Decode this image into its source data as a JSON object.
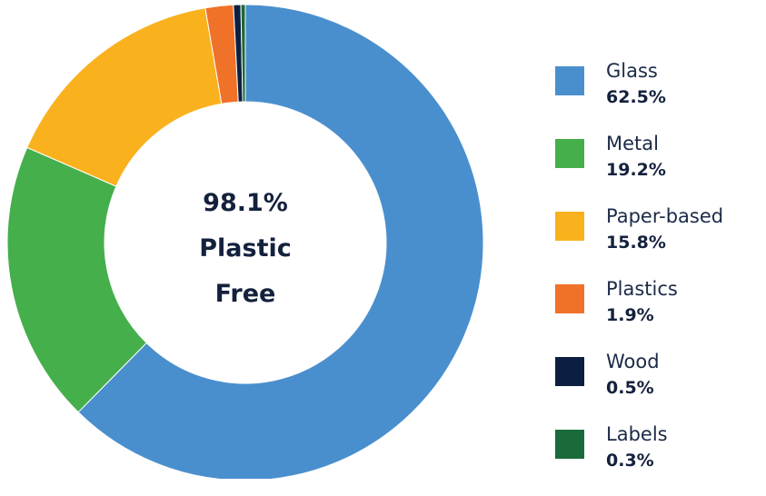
{
  "chart_data": {
    "type": "pie",
    "donut": true,
    "center_text": [
      "98.1%",
      "Plastic",
      "Free"
    ],
    "legend_position": "right",
    "slices": [
      {
        "label": "Glass",
        "value": 62.5,
        "value_label": "62.5%",
        "color": "#4a8fcd"
      },
      {
        "label": "Metal",
        "value": 19.2,
        "value_label": "19.2%",
        "color": "#45af4b"
      },
      {
        "label": "Paper-based",
        "value": 15.8,
        "value_label": "15.8%",
        "color": "#f9b11e"
      },
      {
        "label": "Plastics",
        "value": 1.9,
        "value_label": "1.9%",
        "color": "#f07128"
      },
      {
        "label": "Wood",
        "value": 0.5,
        "value_label": "0.5%",
        "color": "#0d1f40"
      },
      {
        "label": "Labels",
        "value": 0.3,
        "value_label": "0.3%",
        "color": "#1b6a3a"
      }
    ]
  }
}
